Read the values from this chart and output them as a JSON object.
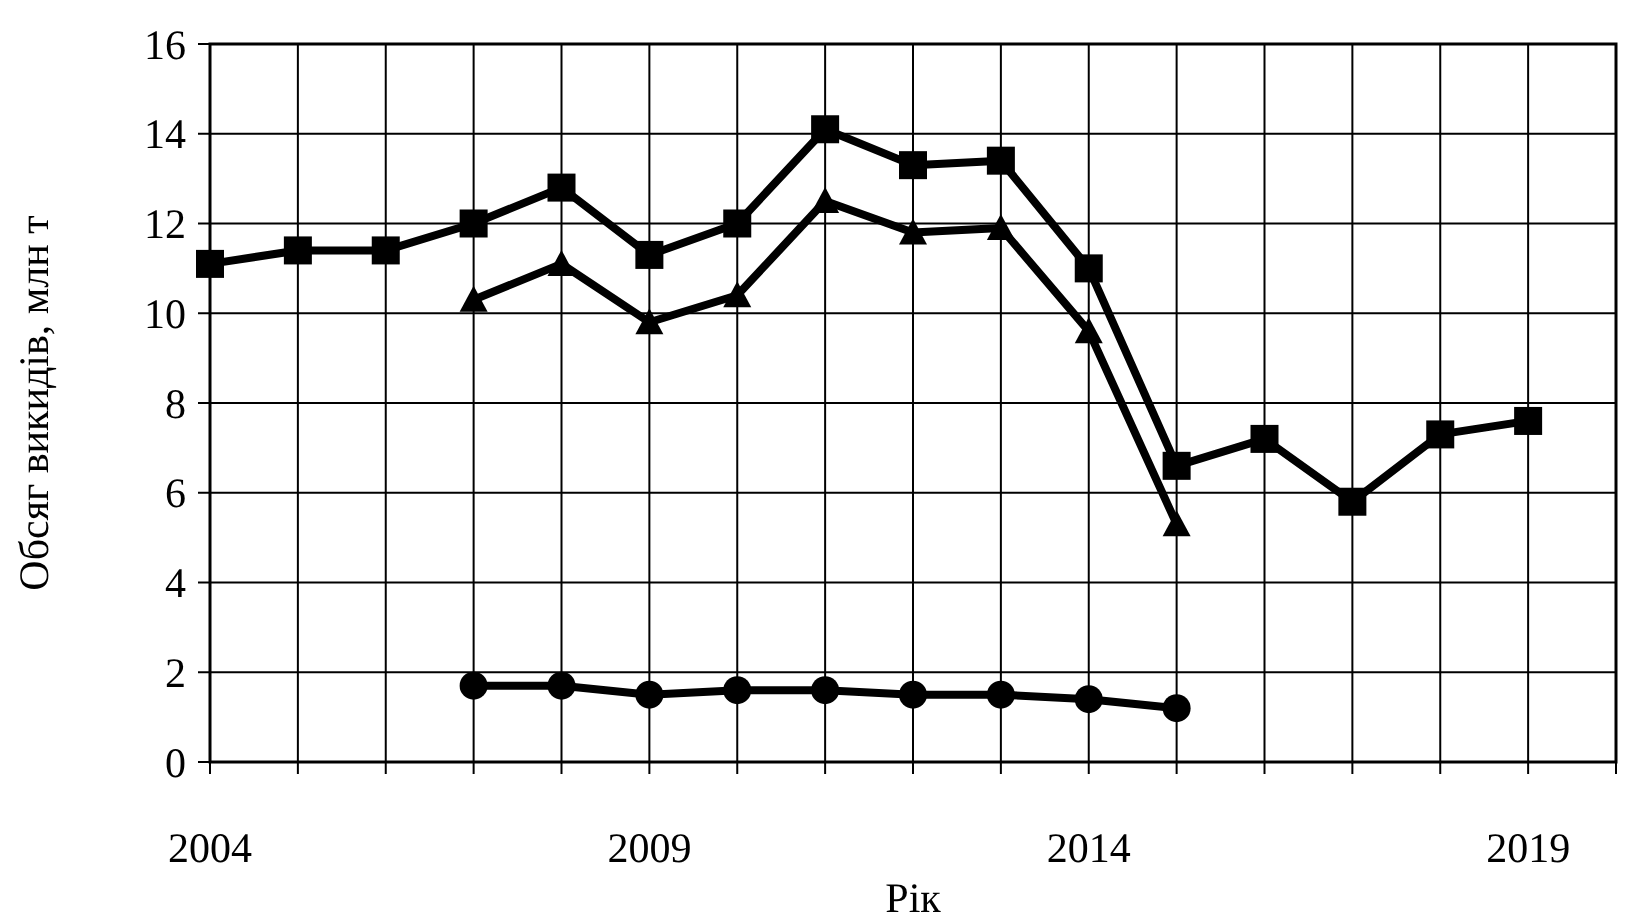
{
  "chart_data": {
    "type": "line",
    "xlabel": "Рік",
    "ylabel": "Обсяг викидів, млн т",
    "xlim": [
      2004,
      2020
    ],
    "ylim": [
      0,
      16
    ],
    "xticks": [
      2004,
      {
        "value": 2005,
        "label": null
      },
      {
        "value": 2006,
        "label": null
      },
      {
        "value": 2007,
        "label": null
      },
      {
        "value": 2008,
        "label": null
      },
      2009,
      {
        "value": 2010,
        "label": null
      },
      {
        "value": 2011,
        "label": null
      },
      {
        "value": 2012,
        "label": null
      },
      {
        "value": 2013,
        "label": null
      },
      2014,
      {
        "value": 2015,
        "label": null
      },
      {
        "value": 2016,
        "label": null
      },
      {
        "value": 2017,
        "label": null
      },
      {
        "value": 2018,
        "label": null
      },
      2019,
      {
        "value": 2020,
        "label": null
      }
    ],
    "yticks": [
      0,
      2,
      4,
      6,
      8,
      10,
      12,
      14,
      16
    ],
    "grid": true,
    "line_style": "solid",
    "series": [
      {
        "color": "#000000",
        "marker": "square",
        "x": [
          2004,
          2005,
          2006,
          2007,
          2008,
          2009,
          2010,
          2011,
          2012,
          2013,
          2014,
          2015,
          2016,
          2017,
          2018,
          2019
        ],
        "values": [
          11.1,
          11.4,
          11.4,
          12.0,
          12.8,
          11.3,
          12.0,
          14.1,
          13.3,
          13.4,
          11.0,
          6.6,
          7.2,
          5.8,
          7.3,
          7.6
        ]
      },
      {
        "color": "#000000",
        "marker": "triangle",
        "x": [
          2007,
          2008,
          2009,
          2010,
          2011,
          2012,
          2013,
          2014,
          2015
        ],
        "values": [
          10.3,
          11.1,
          9.8,
          10.4,
          12.5,
          11.8,
          11.9,
          9.6,
          5.3
        ]
      },
      {
        "color": "#000000",
        "marker": "circle",
        "x": [
          2007,
          2008,
          2009,
          2010,
          2011,
          2012,
          2013,
          2014,
          2015
        ],
        "values": [
          1.7,
          1.7,
          1.5,
          1.6,
          1.6,
          1.5,
          1.5,
          1.4,
          1.2
        ]
      }
    ]
  }
}
